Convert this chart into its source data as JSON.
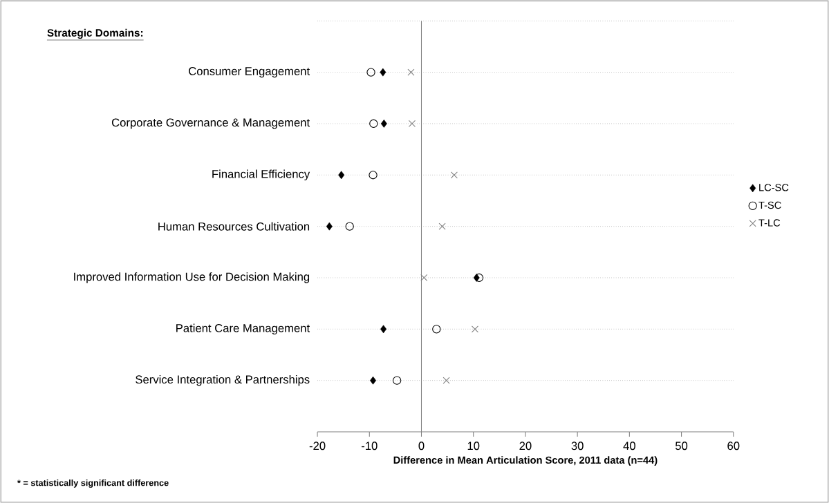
{
  "chart_data": {
    "type": "scatter",
    "ylabel": "Strategic Domains:",
    "xlabel": "Difference in Mean Articulation Score, 2011 data (n=44)",
    "categories": [
      "Consumer Engagement",
      "Corporate Governance & Management",
      "Financial Efficiency",
      "Human Resources Cultivation",
      "Improved Information Use for Decision Making",
      "Patient Care Management",
      "Service Integration & Partnerships"
    ],
    "series": [
      {
        "name": "LC-SC",
        "color": "#000000",
        "marker": "diamond",
        "values": [
          -7.4,
          -7.2,
          -15.4,
          -17.7,
          10.6,
          -7.3,
          -9.3
        ]
      },
      {
        "name": "T-SC",
        "color": "#000000",
        "marker": "circle",
        "values": [
          -9.7,
          -9.2,
          -9.3,
          -13.8,
          11.1,
          2.9,
          -4.7
        ]
      },
      {
        "name": "T-LC",
        "color": "#808080",
        "marker": "cross",
        "values": [
          -2.0,
          -1.8,
          6.3,
          4.0,
          0.5,
          10.3,
          4.8
        ]
      }
    ],
    "orientation": "horizontal",
    "xlim": [
      -20,
      60
    ],
    "xticks": [
      -20,
      -10,
      0,
      10,
      20,
      30,
      40,
      50,
      60
    ],
    "grid": "y",
    "legend": "right",
    "annotations": [
      "* = statistically significant difference"
    ]
  }
}
